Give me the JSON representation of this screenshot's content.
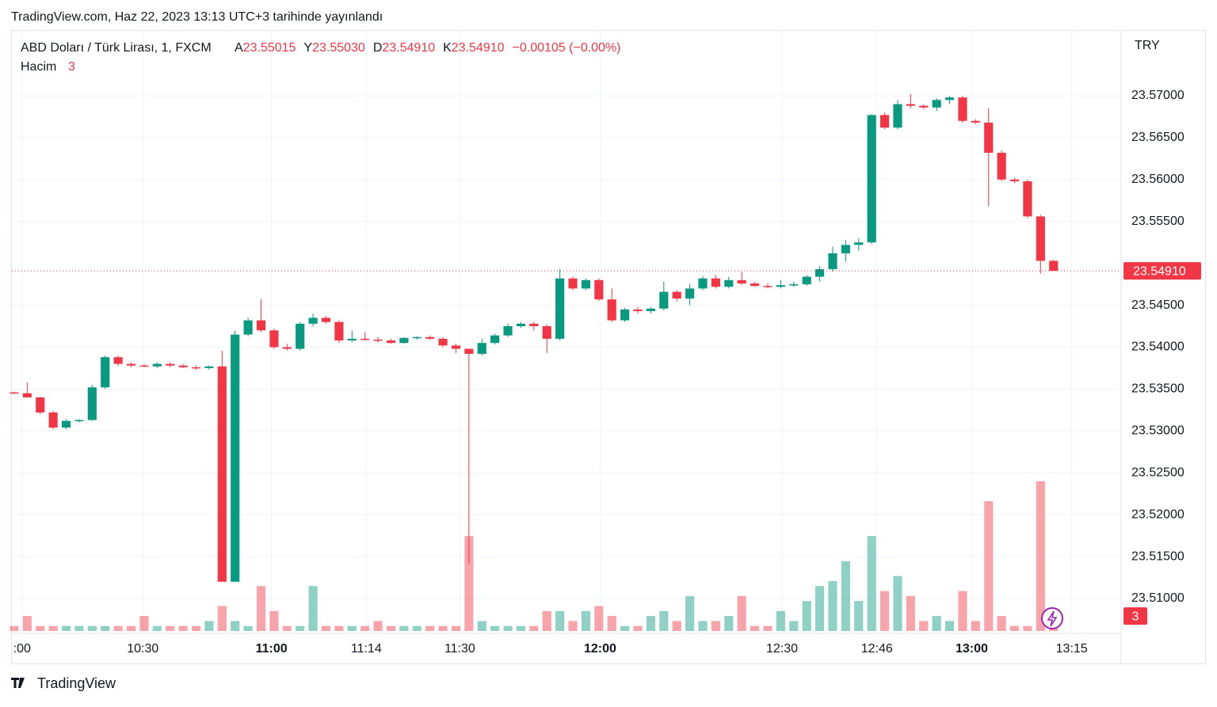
{
  "header": "TradingView.com, Haz 22, 2023 13:13 UTC+3 tarihinde yayınlandı",
  "footer": "TradingView",
  "chart_data": {
    "type": "candlestick",
    "symbol": "ABD Doları / Türk Lirası, 1, FXCM",
    "ohlc_legend": {
      "labels": [
        "A",
        "Y",
        "D",
        "K"
      ],
      "values": [
        "23.55015",
        "23.55030",
        "23.54910",
        "23.54910"
      ],
      "change": "−0.00105 (−0.00%)"
    },
    "volume_label": "Hacim",
    "currency": "TRY",
    "up_color": "#089981",
    "down_color": "#f23645",
    "grid": true,
    "xlim": [
      -0.18,
      85.2
    ],
    "xticks": [
      {
        "value": 0.6,
        "label": ":00"
      },
      {
        "value": 9.9,
        "label": "10:30"
      },
      {
        "value": 19.8,
        "label": "11:00"
      },
      {
        "value": 27.1,
        "label": "11:14"
      },
      {
        "value": 34.3,
        "label": "11:30"
      },
      {
        "value": 45.1,
        "label": "12:00"
      },
      {
        "value": 59.1,
        "label": "12:30"
      },
      {
        "value": 66.4,
        "label": "12:46"
      },
      {
        "value": 73.7,
        "label": "13:00"
      },
      {
        "value": 81.4,
        "label": "13:15"
      }
    ],
    "ylim": [
      23.50584,
      23.57765
    ],
    "yticks": [
      {
        "value": 23.51,
        "label": "23.51000"
      },
      {
        "value": 23.515,
        "label": "23.51500"
      },
      {
        "value": 23.52,
        "label": "23.52000"
      },
      {
        "value": 23.525,
        "label": "23.52500"
      },
      {
        "value": 23.53,
        "label": "23.53000"
      },
      {
        "value": 23.535,
        "label": "23.53500"
      },
      {
        "value": 23.54,
        "label": "23.54000"
      },
      {
        "value": 23.545,
        "label": "23.54500"
      },
      {
        "value": 23.555,
        "label": "23.55500"
      },
      {
        "value": 23.56,
        "label": "23.56000"
      },
      {
        "value": 23.565,
        "label": "23.56500"
      },
      {
        "value": 23.57,
        "label": "23.57000"
      }
    ],
    "y2lim": [
      0,
      120
    ],
    "last_price": {
      "value": 23.5491,
      "label": "23.54910"
    },
    "open": [
      23.5346,
      23.5345,
      23.534,
      23.5322,
      23.5304,
      23.5312,
      23.5313,
      23.5352,
      23.5388,
      23.538,
      23.5378,
      23.5377,
      23.538,
      23.5378,
      23.5376,
      23.5375,
      23.5377,
      23.512,
      23.5415,
      23.5432,
      23.542,
      23.54,
      23.5398,
      23.5428,
      23.5435,
      23.543,
      23.5408,
      23.541,
      23.5409,
      23.5408,
      23.5405,
      23.5411,
      23.5412,
      23.541,
      23.5402,
      23.5398,
      23.5392,
      23.5405,
      23.5414,
      23.5425,
      23.5428,
      23.5425,
      23.541,
      23.5482,
      23.547,
      23.548,
      23.5457,
      23.5432,
      23.5445,
      23.5443,
      23.5446,
      23.5466,
      23.5458,
      23.547,
      23.5482,
      23.5472,
      23.548,
      23.5476,
      23.5473,
      23.5472,
      23.5474,
      23.5475,
      23.5484,
      23.5493,
      23.5512,
      23.5522,
      23.5525,
      23.5677,
      23.5662,
      23.569,
      23.5688,
      23.5686,
      23.5695,
      23.5698,
      23.567,
      23.5668,
      23.5632,
      23.56,
      23.5598,
      23.5556,
      23.5503
    ],
    "high": [
      23.5347,
      23.5358,
      23.5341,
      23.5324,
      23.5314,
      23.5314,
      23.5355,
      23.539,
      23.539,
      23.5382,
      23.538,
      23.5382,
      23.5382,
      23.538,
      23.5378,
      23.5378,
      23.5396,
      23.542,
      23.5435,
      23.5457,
      23.5422,
      23.5404,
      23.543,
      23.544,
      23.5437,
      23.5432,
      23.542,
      23.5418,
      23.5412,
      23.541,
      23.5412,
      23.5413,
      23.5414,
      23.5412,
      23.5404,
      23.5398,
      23.541,
      23.5416,
      23.5428,
      23.543,
      23.543,
      23.5427,
      23.5493,
      23.5484,
      23.5482,
      23.5482,
      23.547,
      23.5447,
      23.5448,
      23.5448,
      23.5478,
      23.5468,
      23.5475,
      23.5485,
      23.5486,
      23.5484,
      23.549,
      23.5478,
      23.5476,
      23.548,
      23.5478,
      23.5486,
      23.5497,
      23.552,
      23.5528,
      23.553,
      23.5678,
      23.568,
      23.5695,
      23.5702,
      23.569,
      23.5697,
      23.57,
      23.57,
      23.5672,
      23.5685,
      23.5635,
      23.5602,
      23.56,
      23.5558,
      23.5504
    ],
    "low": [
      23.5344,
      23.534,
      23.532,
      23.5302,
      23.5302,
      23.531,
      23.5312,
      23.535,
      23.5378,
      23.5376,
      23.5376,
      23.5375,
      23.5376,
      23.5375,
      23.5373,
      23.5373,
      23.512,
      23.512,
      23.5413,
      23.5418,
      23.5398,
      23.5396,
      23.5396,
      23.5425,
      23.5428,
      23.5405,
      23.5406,
      23.5408,
      23.5406,
      23.5404,
      23.5404,
      23.5409,
      23.5409,
      23.54,
      23.5393,
      23.5142,
      23.539,
      23.5403,
      23.5412,
      23.5423,
      23.542,
      23.5393,
      23.5408,
      23.5468,
      23.5468,
      23.5455,
      23.543,
      23.543,
      23.544,
      23.544,
      23.5444,
      23.5455,
      23.545,
      23.5468,
      23.547,
      23.547,
      23.5474,
      23.5472,
      23.547,
      23.547,
      23.5472,
      23.5473,
      23.5478,
      23.549,
      23.5502,
      23.5515,
      23.5523,
      23.566,
      23.566,
      23.5685,
      23.5684,
      23.5682,
      23.569,
      23.5668,
      23.5666,
      23.5568,
      23.5598,
      23.5596,
      23.5554,
      23.5488,
      23.5491
    ],
    "close": [
      23.5345,
      23.534,
      23.5322,
      23.5304,
      23.5312,
      23.5313,
      23.5352,
      23.5388,
      23.538,
      23.5378,
      23.5377,
      23.538,
      23.5378,
      23.5376,
      23.5375,
      23.5377,
      23.512,
      23.5415,
      23.5432,
      23.542,
      23.54,
      23.5398,
      23.5428,
      23.5435,
      23.543,
      23.5408,
      23.541,
      23.5409,
      23.5408,
      23.5405,
      23.5411,
      23.5412,
      23.541,
      23.5402,
      23.5398,
      23.5392,
      23.5405,
      23.5414,
      23.5425,
      23.5428,
      23.5425,
      23.541,
      23.5482,
      23.547,
      23.548,
      23.5457,
      23.5432,
      23.5445,
      23.5443,
      23.5446,
      23.5466,
      23.5458,
      23.547,
      23.5482,
      23.5472,
      23.548,
      23.5476,
      23.5473,
      23.5472,
      23.5474,
      23.5475,
      23.5484,
      23.5493,
      23.5512,
      23.5522,
      23.5525,
      23.5677,
      23.5662,
      23.569,
      23.5688,
      23.5686,
      23.5695,
      23.5698,
      23.567,
      23.5668,
      23.5632,
      23.56,
      23.5598,
      23.5556,
      23.5503,
      23.5491
    ],
    "volume": [
      1,
      3,
      1,
      1,
      1,
      1,
      1,
      1,
      1,
      1,
      3,
      1,
      1,
      1,
      1,
      2,
      5,
      2,
      1,
      9,
      4,
      1,
      1,
      9,
      1,
      1,
      1,
      1,
      2,
      1,
      1,
      1,
      1,
      1,
      1,
      19,
      2,
      1,
      1,
      1,
      1,
      4,
      4,
      2,
      4,
      5,
      3,
      1,
      1,
      3,
      4,
      2,
      7,
      2,
      2,
      3,
      7,
      1,
      1,
      4,
      2,
      6,
      9,
      10,
      14,
      6,
      19,
      8,
      11,
      7,
      2,
      3,
      2,
      8,
      2,
      26,
      3,
      1,
      1,
      30,
      3
    ]
  }
}
